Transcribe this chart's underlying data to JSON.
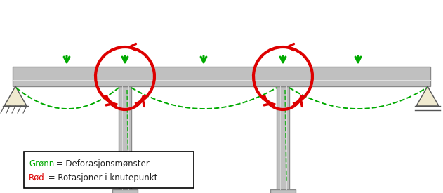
{
  "bg_color": "#ffffff",
  "beam_color": "#c0c0c0",
  "beam_outline": "#888888",
  "column_color": "#c0c0c0",
  "column_outline": "#888888",
  "green_color": "#00aa00",
  "red_color": "#dd0000",
  "dark_text": "#222222",
  "legend_text_green": "Grønn",
  "legend_text_red": "Rød",
  "legend_suffix_green": " = Deforasjonsmønster",
  "legend_suffix_red": " = Rotasjoner i knutepunkt",
  "fig_w": 6.31,
  "fig_h": 2.75,
  "dpi": 100
}
